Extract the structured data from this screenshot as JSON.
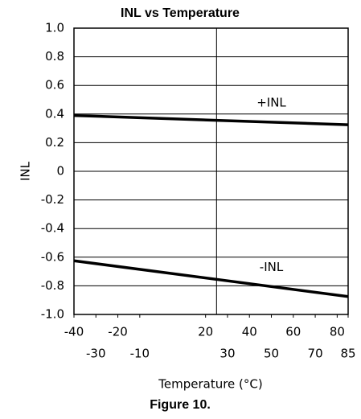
{
  "chart_data": {
    "type": "line",
    "title": "INL vs Temperature",
    "x_label": "Temperature (°C)",
    "y_label": "INL",
    "caption": "Figure 10.",
    "x": [
      -40,
      85
    ],
    "series": [
      {
        "name": "+INL",
        "color": "#000000",
        "values": [
          0.39,
          0.325
        ]
      },
      {
        "name": "-INL",
        "color": "#000000",
        "values": [
          -0.625,
          -0.875
        ]
      }
    ],
    "xlim": [
      -40,
      85
    ],
    "xticks": [
      -40,
      -30,
      -20,
      -10,
      20,
      30,
      40,
      50,
      60,
      70,
      80,
      85
    ],
    "x_grid_lines": [
      25
    ],
    "ylim": [
      -1,
      1
    ],
    "yticks": [
      {
        "value": -1,
        "label": "-1.0"
      },
      -0.8,
      -0.6,
      -0.4,
      -0.2,
      0,
      0.2,
      0.4,
      0.6,
      0.8,
      {
        "value": 1,
        "label": "1.0"
      }
    ],
    "grid": true
  }
}
